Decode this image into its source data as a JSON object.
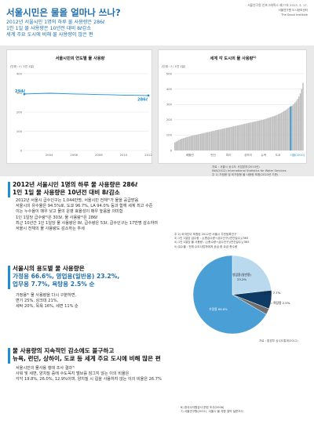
{
  "header": {
    "title": "서울시민은 물을 얼마나 쓰나?",
    "meta_line1": "서울연구원 인포그래픽스 제77호 2013. 3. 17.",
    "meta_line2": "서울연구원 도시정보센터",
    "meta_line3": "The Seoul Institute"
  },
  "intro": {
    "lines": [
      "2012년 서울시민 1명의 하루 물 사용량은 286ℓ",
      "1인 1일 물 사용량은 10년전 대비 8ℓ감소",
      "세계 주요 도시에 비해 물 사용량이 많은 편"
    ]
  },
  "chart_data": [
    {
      "type": "line",
      "title": "서울시민의 연도별 물 사용량",
      "ylabel": "(단위 : ℓ / 1인 1일)",
      "ylim": [
        0,
        400
      ],
      "y_ticks": [
        "0",
        "100",
        "200",
        "300",
        "400"
      ],
      "x_ticks": [
        "2004",
        "2006",
        "2008",
        "2010",
        "2012"
      ],
      "x": [
        2002,
        2003,
        2004,
        2005,
        2006,
        2007,
        2008,
        2009,
        2010,
        2011,
        2012
      ],
      "values": [
        294,
        296,
        298,
        296,
        294,
        293,
        291,
        290,
        288,
        287,
        286
      ],
      "labels": {
        "start": "294ℓ",
        "end": "286ℓ"
      },
      "color": "#1f8fd0",
      "grid": true
    },
    {
      "type": "bar",
      "title": "세계 각 도시의 물 사용량",
      "title_sup": "1)",
      "ylabel": "(단위 : ℓ / 1인 1일)",
      "ylim": [
        0,
        500
      ],
      "y_ticks": [
        "0",
        "100",
        "200",
        "300",
        "400",
        "500"
      ],
      "x_ticks": [
        "베를린",
        "런던",
        "파리",
        "상하이",
        "뉴욕",
        "도쿄",
        "서울(2010)"
      ],
      "values": [
        52,
        58,
        63,
        68,
        72,
        76,
        79,
        82,
        85,
        88,
        90,
        93,
        95,
        97,
        99,
        101,
        103,
        105,
        107,
        109,
        111,
        113,
        115,
        117,
        119,
        121,
        123,
        125,
        127,
        129,
        131,
        133,
        135,
        137,
        139,
        141,
        143,
        145,
        147,
        149,
        151,
        153,
        155,
        157,
        159,
        161,
        163,
        165,
        167,
        169,
        171,
        173,
        175,
        177,
        179,
        181,
        183,
        185,
        187,
        189,
        191,
        193,
        195,
        197,
        199,
        201,
        204,
        207,
        210,
        213,
        216,
        219,
        222,
        225,
        228,
        232,
        236,
        240,
        245,
        250,
        256,
        262,
        268,
        275,
        283,
        287,
        292,
        300,
        310,
        320,
        335,
        352,
        372,
        400,
        440
      ],
      "highlight_index": 85,
      "highlight_value": 287,
      "bar_color": "#bdbdbd",
      "highlight_color": "#1f8fd0"
    },
    {
      "type": "pie",
      "slices": [
        {
          "name": "가정용",
          "value": 66.6,
          "color": "#4a9fd6"
        },
        {
          "name": "영업용(일반용)",
          "value": 23.2,
          "color": "#b9d9ef"
        },
        {
          "name": "업무용",
          "value": 7.7,
          "color": "#0d3b66"
        },
        {
          "name": "욕탕용",
          "value": 2.5,
          "color": "#6e6e6e"
        }
      ],
      "labels": {
        "home": "가정용 66.6%",
        "business": "영업용(일반용)",
        "business_pct": "23.2%",
        "office": "업무용 7.7%",
        "bath": "욕탕용 2.5%"
      }
    }
  ],
  "chart_sources": {
    "line_source": "",
    "bar_source_1": "자료 : 서울시 상수도 사업본부(2010년)",
    "bar_source_2": "IWA(2012) International Statistics for Water Services",
    "bar_note": "주 1) 가정용 및 비가정용 물 사용량 포함(2010년 기준)",
    "pie_source": "자료 : 환경부 상수도통계(2012)"
  },
  "section1": {
    "title_line1": "2012년 서울시민 1명의 하루 물 사용량은 286ℓ",
    "title_line2": "1인 1일 물 사용량은 10년전 대비 8ℓ감소",
    "body": [
      "2012년 서울시 급수인구는 1,044만명, 서울시민 전체²⁾가 물을 공급받음",
      "서울시의 유수율은 94.5%로, 도쿄 96.7%, LA 94.0% 등과 함께 세계 최고 수준",
      "이는 누수율이 매우 낮고 물의 운영 효율성이 매우 높음을 의미함",
      "1인 1일당 급수량³⁾은 303ℓ, 물 사용량⁴⁾은 286ℓ",
      "최근 10년간 1인 1일당 물 사용량은 8ℓ, 급수량은 53ℓ, 급수인구는 17만명 감소하여",
      "서울시 전체의 물 사용량도 감소하는 추세"
    ],
    "notes": [
      "주 2) 외국인이 포함된 2012년 서울시 주민등록인구",
      "3) 1인 1일당 급수량 : {(총급수량÷급수인구)/연간일수}/365",
      "4) 1인 1일당 물 사용량 : {(총수량÷급수인구)/연간일수}/365",
      "5) 유수율 : 전체 수도사업자에게 공급 중 요금 총수량"
    ]
  },
  "section2": {
    "title_line1": "서울시의 용도별 물 사용량은",
    "title_line2": "가정용 66.6%, 영업용(일반용) 23.2%,",
    "title_line3": "업무용 7.7%, 욕탕용 2.5% 순",
    "body": [
      "가정용⁶⁾ 물 사용량을 다시 구분하면,",
      "변기 25%, 싱크대 21%,",
      "세탁 20%, 목욕 16%, 세면 11% 순"
    ]
  },
  "section3": {
    "title_line1": "물 사용량의 지속적인 감소에도 불구하고",
    "title_line2": "뉴욕, 런던, 상하이, 도쿄 등 세계 주요 도시에 비해 많은 편",
    "body": [
      "서울시민의 물사용 행태 조사 결과⁷⁾",
      "사워 및 세면, 양치질 중에 수도꼭지 밸브를 잠그지 않는 이의 비율은",
      "각각 19.8%, 26.0%, 12.9%이며, 양치질 시 컵을 사용하지 않는 이의 비율은 26.7%"
    ],
    "notes": [
      "6) 한국수자원공사 문헌 조사(2006)",
      "7) 서울연구원(2011), 서울시 물 자원 절약 설문조사"
    ]
  }
}
